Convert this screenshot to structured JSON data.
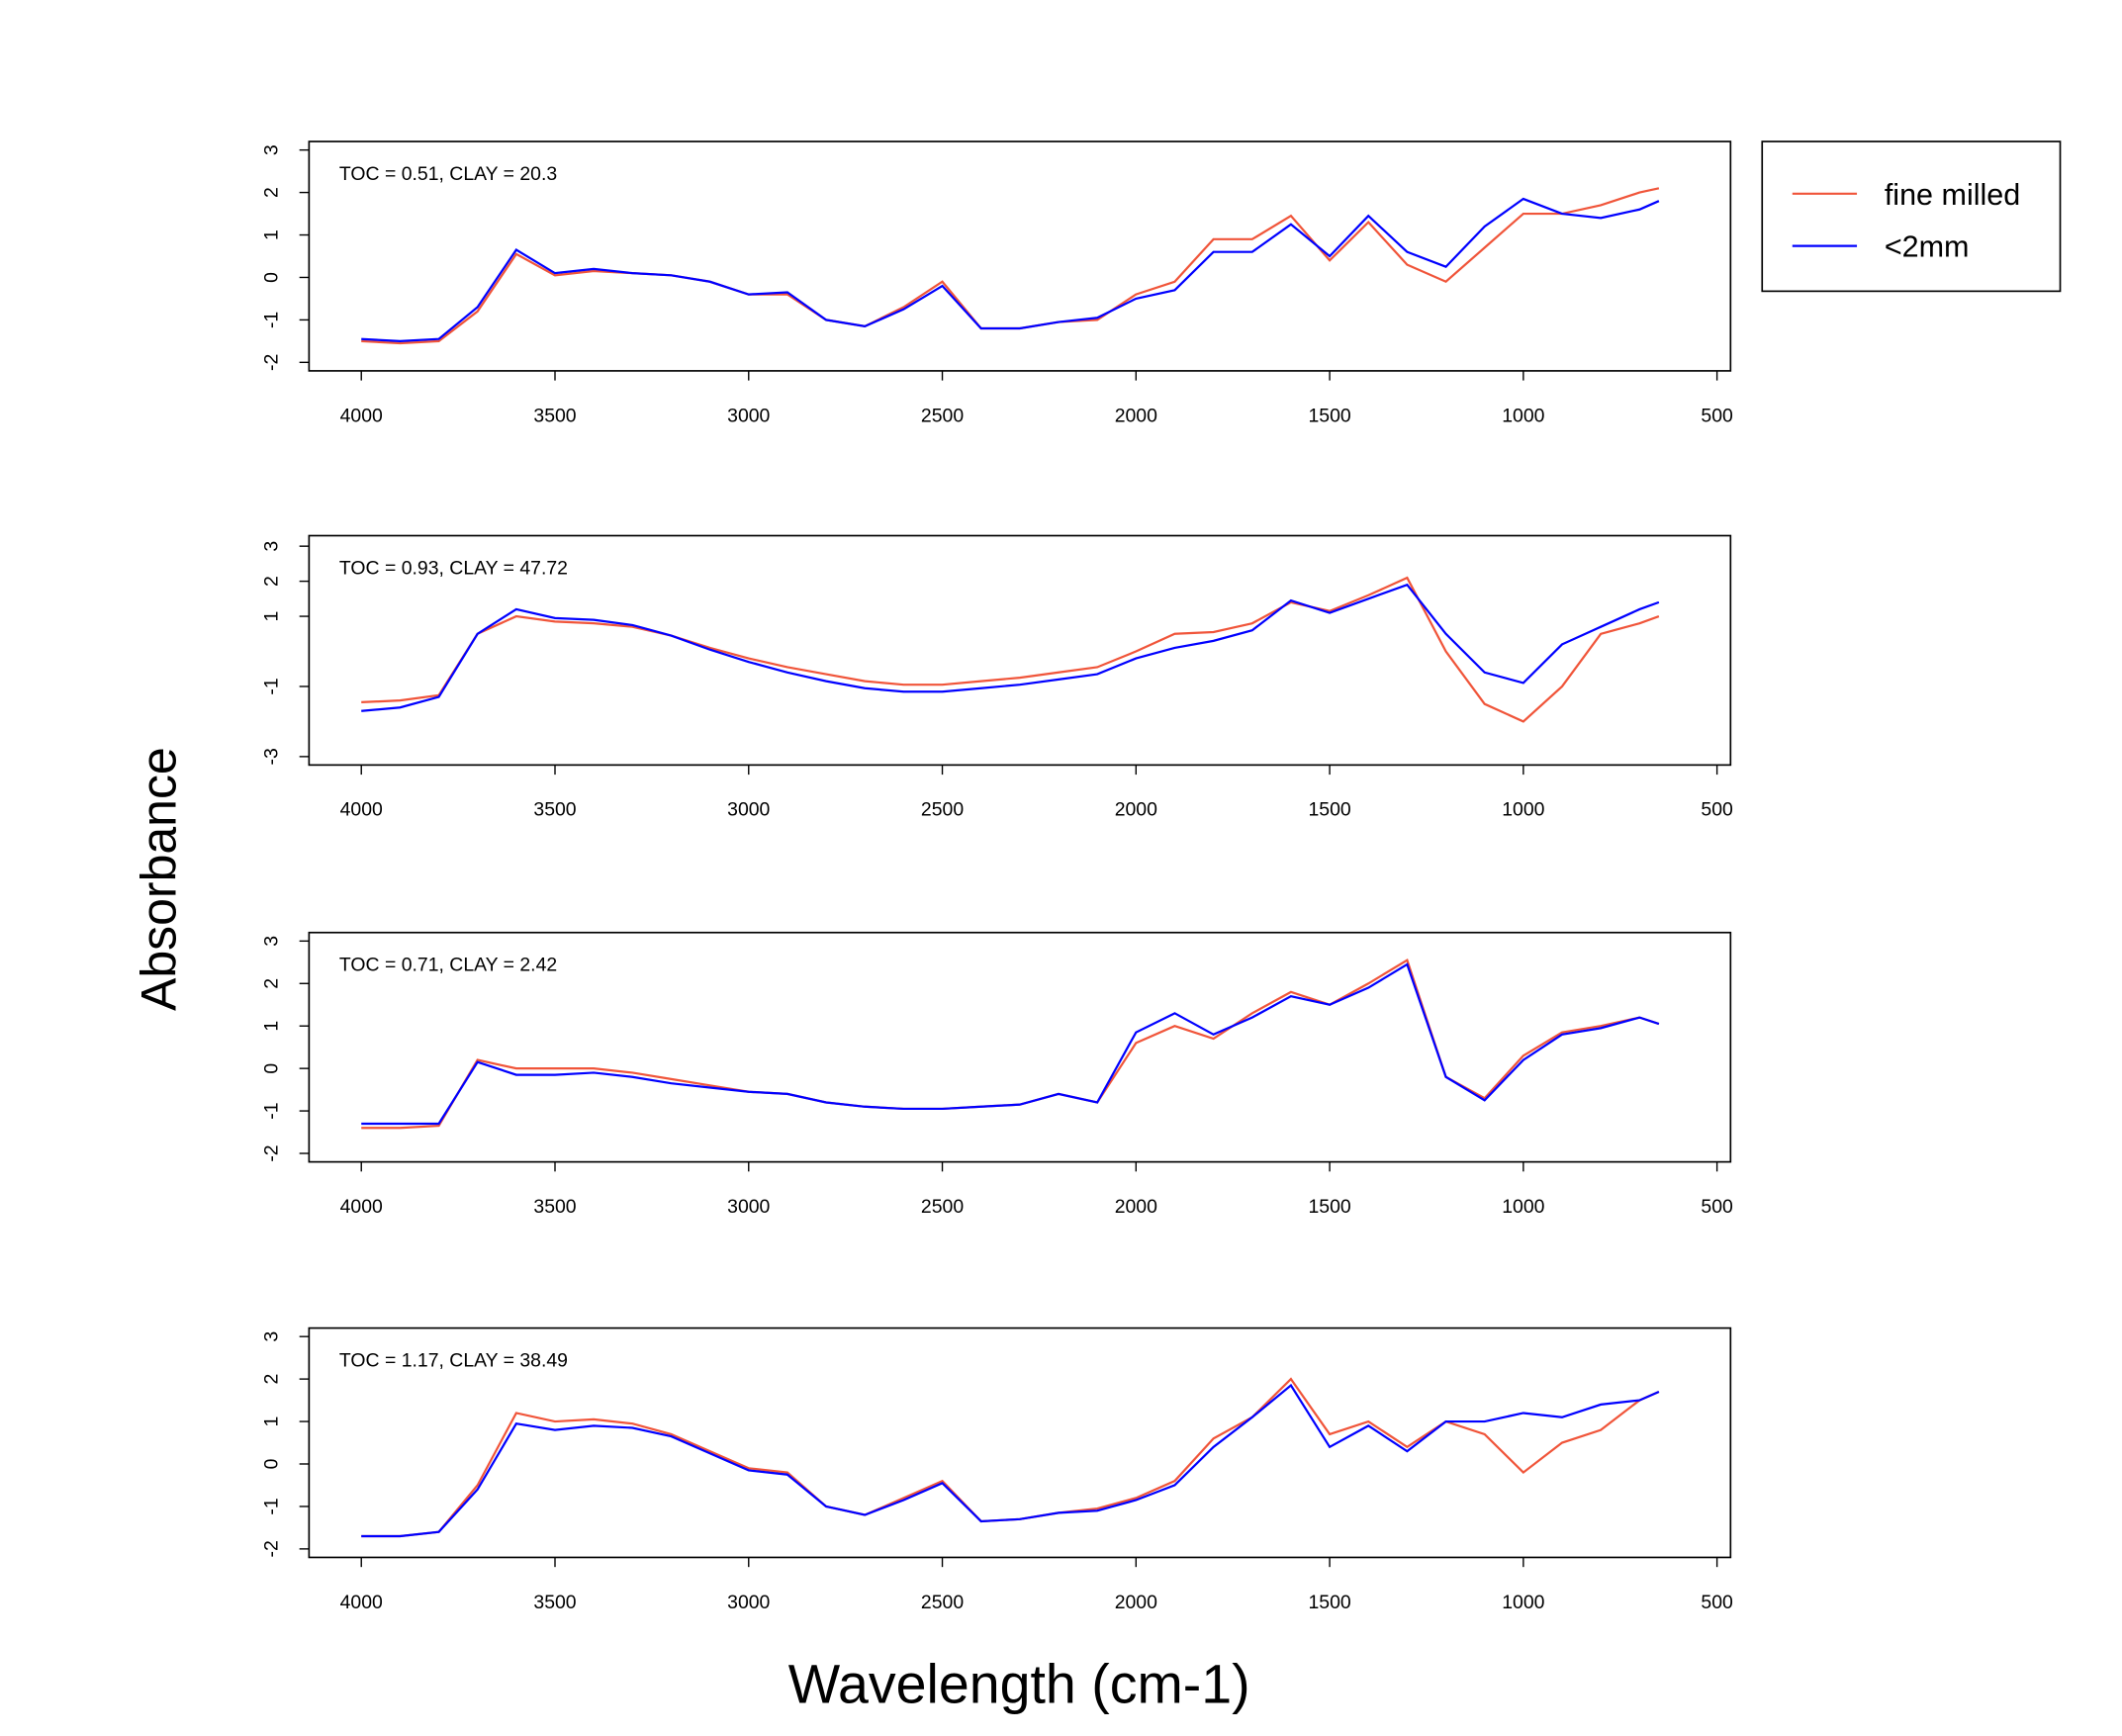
{
  "ylabel": "Absorbance",
  "xlabel": "Wavelength (cm-1)",
  "chart_data": [
    {
      "type": "line",
      "annotation": "TOC = 0.51, CLAY = 20.3",
      "x": [
        4000,
        3900,
        3800,
        3700,
        3600,
        3500,
        3400,
        3300,
        3200,
        3100,
        3000,
        2900,
        2800,
        2700,
        2600,
        2500,
        2400,
        2300,
        2200,
        2100,
        2000,
        1900,
        1800,
        1700,
        1600,
        1500,
        1400,
        1300,
        1200,
        1100,
        1000,
        900,
        800,
        700,
        650
      ],
      "xlim": [
        4135,
        465
      ],
      "xticks": [
        4000,
        3500,
        3000,
        2500,
        2000,
        1500,
        1000,
        500
      ],
      "ylim": [
        -2.2,
        3.2
      ],
      "yticks": [
        -2,
        -1,
        0,
        1,
        2,
        3
      ],
      "series": [
        {
          "name": "fine milled",
          "color": "#f0553a",
          "values": [
            -1.5,
            -1.55,
            -1.5,
            -0.8,
            0.55,
            0.05,
            0.15,
            0.1,
            0.05,
            -0.1,
            -0.4,
            -0.4,
            -1.0,
            -1.15,
            -0.7,
            -0.1,
            -1.2,
            -1.2,
            -1.05,
            -1.0,
            -0.4,
            -0.1,
            0.9,
            0.9,
            1.45,
            0.4,
            1.3,
            0.3,
            -0.1,
            0.7,
            1.5,
            1.5,
            1.7,
            2.0,
            2.1
          ]
        },
        {
          "name": "<2mm",
          "color": "#0000ff",
          "values": [
            -1.45,
            -1.5,
            -1.45,
            -0.7,
            0.65,
            0.1,
            0.2,
            0.1,
            0.05,
            -0.1,
            -0.4,
            -0.35,
            -1.0,
            -1.15,
            -0.75,
            -0.2,
            -1.2,
            -1.2,
            -1.05,
            -0.95,
            -0.5,
            -0.3,
            0.6,
            0.6,
            1.25,
            0.5,
            1.45,
            0.6,
            0.25,
            1.2,
            1.85,
            1.5,
            1.4,
            1.6,
            1.8
          ]
        }
      ]
    },
    {
      "type": "line",
      "annotation": "TOC = 0.93, CLAY = 47.72",
      "x": [
        4000,
        3900,
        3800,
        3700,
        3600,
        3500,
        3400,
        3300,
        3200,
        3100,
        3000,
        2900,
        2800,
        2700,
        2600,
        2500,
        2400,
        2300,
        2200,
        2100,
        2000,
        1900,
        1800,
        1700,
        1600,
        1500,
        1400,
        1300,
        1200,
        1100,
        1000,
        900,
        800,
        700,
        650
      ],
      "xlim": [
        4135,
        465
      ],
      "xticks": [
        4000,
        3500,
        3000,
        2500,
        2000,
        1500,
        1000,
        500
      ],
      "ylim": [
        -3.24,
        3.3
      ],
      "yticks": [
        -3,
        -1,
        1,
        2,
        3
      ],
      "series": [
        {
          "color": "#f0553a",
          "values": [
            -1.45,
            -1.4,
            -1.25,
            0.5,
            1.0,
            0.85,
            0.8,
            0.7,
            0.45,
            0.1,
            -0.2,
            -0.45,
            -0.65,
            -0.85,
            -0.95,
            -0.95,
            -0.85,
            -0.75,
            -0.6,
            -0.45,
            0.0,
            0.5,
            0.55,
            0.8,
            1.4,
            1.15,
            1.6,
            2.1,
            0.0,
            -1.5,
            -2.0,
            -1.0,
            0.5,
            0.8,
            1.0
          ]
        },
        {
          "color": "#0000ff",
          "values": [
            -1.7,
            -1.6,
            -1.3,
            0.5,
            1.2,
            0.95,
            0.9,
            0.75,
            0.45,
            0.05,
            -0.3,
            -0.6,
            -0.85,
            -1.05,
            -1.15,
            -1.15,
            -1.05,
            -0.95,
            -0.8,
            -0.65,
            -0.2,
            0.1,
            0.3,
            0.6,
            1.45,
            1.1,
            1.5,
            1.9,
            0.5,
            -0.6,
            -0.9,
            0.2,
            0.7,
            1.2,
            1.4
          ]
        }
      ]
    },
    {
      "type": "line",
      "annotation": "TOC = 0.71, CLAY = 2.42",
      "x": [
        4000,
        3900,
        3800,
        3700,
        3600,
        3500,
        3400,
        3300,
        3200,
        3100,
        3000,
        2900,
        2800,
        2700,
        2600,
        2500,
        2400,
        2300,
        2200,
        2100,
        2000,
        1900,
        1800,
        1700,
        1600,
        1500,
        1400,
        1300,
        1200,
        1100,
        1000,
        900,
        800,
        700,
        650
      ],
      "xlim": [
        4135,
        465
      ],
      "xticks": [
        4000,
        3500,
        3000,
        2500,
        2000,
        1500,
        1000,
        500
      ],
      "ylim": [
        -2.2,
        3.2
      ],
      "yticks": [
        -2,
        -1,
        0,
        1,
        2,
        3
      ],
      "series": [
        {
          "color": "#f0553a",
          "values": [
            -1.4,
            -1.4,
            -1.35,
            0.2,
            0.0,
            0.0,
            0.0,
            -0.1,
            -0.25,
            -0.4,
            -0.55,
            -0.6,
            -0.8,
            -0.9,
            -0.95,
            -0.95,
            -0.9,
            -0.85,
            -0.6,
            -0.8,
            0.6,
            1.0,
            0.7,
            1.3,
            1.8,
            1.5,
            2.0,
            2.55,
            -0.2,
            -0.7,
            0.3,
            0.85,
            1.0,
            1.2,
            1.05
          ]
        },
        {
          "color": "#0000ff",
          "values": [
            -1.3,
            -1.3,
            -1.3,
            0.15,
            -0.15,
            -0.15,
            -0.1,
            -0.2,
            -0.35,
            -0.45,
            -0.55,
            -0.6,
            -0.8,
            -0.9,
            -0.95,
            -0.95,
            -0.9,
            -0.85,
            -0.6,
            -0.8,
            0.85,
            1.3,
            0.8,
            1.2,
            1.7,
            1.5,
            1.9,
            2.45,
            -0.2,
            -0.75,
            0.2,
            0.8,
            0.95,
            1.2,
            1.05
          ]
        }
      ]
    },
    {
      "type": "line",
      "annotation": "TOC = 1.17, CLAY = 38.49",
      "x": [
        4000,
        3900,
        3800,
        3700,
        3600,
        3500,
        3400,
        3300,
        3200,
        3100,
        3000,
        2900,
        2800,
        2700,
        2600,
        2500,
        2400,
        2300,
        2200,
        2100,
        2000,
        1900,
        1800,
        1700,
        1600,
        1500,
        1400,
        1300,
        1200,
        1100,
        1000,
        900,
        800,
        700,
        650
      ],
      "xlim": [
        4135,
        465
      ],
      "xticks": [
        4000,
        3500,
        3000,
        2500,
        2000,
        1500,
        1000,
        500
      ],
      "ylim": [
        -2.2,
        3.2
      ],
      "yticks": [
        -2,
        -1,
        0,
        1,
        2,
        3
      ],
      "series": [
        {
          "color": "#f0553a",
          "values": [
            -1.7,
            -1.7,
            -1.6,
            -0.5,
            1.2,
            1.0,
            1.05,
            0.95,
            0.7,
            0.3,
            -0.1,
            -0.2,
            -1.0,
            -1.2,
            -0.8,
            -0.4,
            -1.35,
            -1.3,
            -1.15,
            -1.05,
            -0.8,
            -0.4,
            0.6,
            1.1,
            2.0,
            0.7,
            1.0,
            0.4,
            1.0,
            0.7,
            -0.2,
            0.5,
            0.8,
            1.5,
            1.7
          ]
        },
        {
          "color": "#0000ff",
          "values": [
            -1.7,
            -1.7,
            -1.6,
            -0.6,
            0.95,
            0.8,
            0.9,
            0.85,
            0.65,
            0.25,
            -0.15,
            -0.25,
            -1.0,
            -1.2,
            -0.85,
            -0.45,
            -1.35,
            -1.3,
            -1.15,
            -1.1,
            -0.85,
            -0.5,
            0.4,
            1.1,
            1.85,
            0.4,
            0.9,
            0.3,
            1.0,
            1.0,
            1.2,
            1.1,
            1.4,
            1.5,
            1.7
          ]
        }
      ]
    }
  ]
}
